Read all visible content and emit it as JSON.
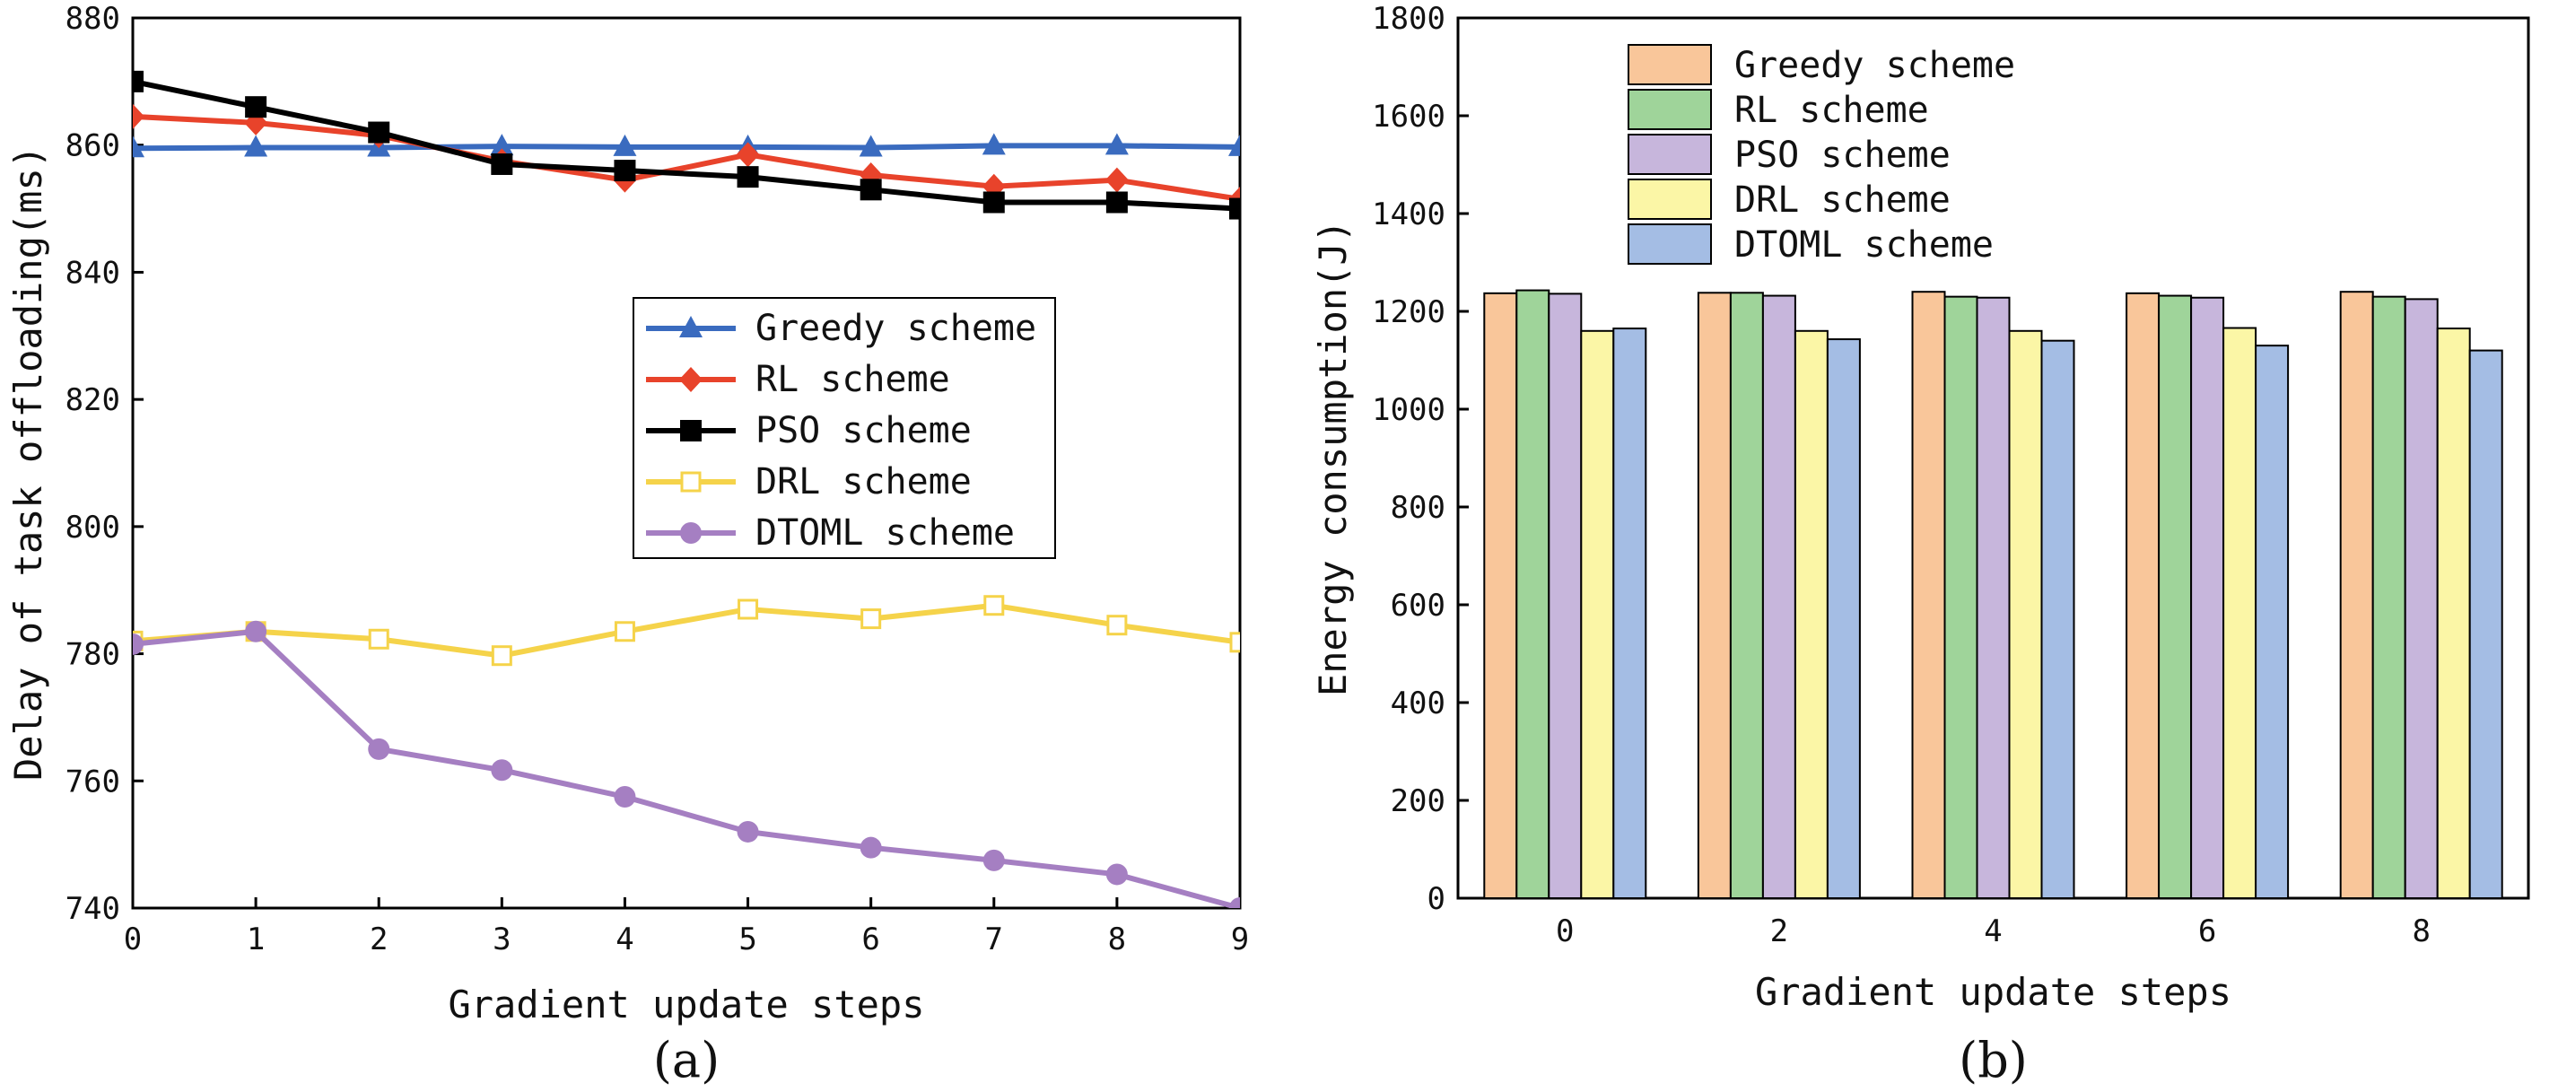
{
  "chart_data": [
    {
      "type": "line",
      "panel_label": "(a)",
      "xlabel": "Gradient update steps",
      "ylabel": "Delay of task offloading(ms)",
      "xlim": [
        0,
        9
      ],
      "ylim": [
        740,
        880
      ],
      "xticks": [
        0,
        1,
        2,
        3,
        4,
        5,
        6,
        7,
        8,
        9
      ],
      "yticks": [
        740,
        760,
        780,
        800,
        820,
        840,
        860,
        880
      ],
      "x": [
        0,
        1,
        2,
        3,
        4,
        5,
        6,
        7,
        8,
        9
      ],
      "legend_position": "center-right",
      "series": [
        {
          "name": "Greedy scheme",
          "color": "#3a6bbf",
          "marker": "triangle",
          "values": [
            859.5,
            859.6,
            859.6,
            859.8,
            859.7,
            859.7,
            859.6,
            859.9,
            859.9,
            859.7
          ]
        },
        {
          "name": "RL scheme",
          "color": "#e8432b",
          "marker": "diamond",
          "values": [
            864.5,
            863.5,
            861.5,
            857.5,
            854.5,
            858.5,
            855.3,
            853.5,
            854.5,
            851.5
          ]
        },
        {
          "name": "PSO scheme",
          "color": "#000000",
          "marker": "square",
          "values": [
            870,
            866,
            862,
            857,
            856,
            855,
            853,
            851,
            851,
            850
          ]
        },
        {
          "name": "DRL scheme",
          "color": "#f5d34a",
          "marker": "open-square",
          "values": [
            782,
            783.5,
            782.3,
            779.7,
            783.5,
            787,
            785.5,
            787.6,
            784.5,
            781.8
          ]
        },
        {
          "name": "DTOML scheme",
          "color": "#a57fc2",
          "marker": "circle",
          "values": [
            781.5,
            783.5,
            765,
            761.7,
            757.5,
            752,
            749.5,
            747.5,
            745.3,
            740
          ]
        }
      ]
    },
    {
      "type": "bar",
      "panel_label": "(b)",
      "xlabel": "Gradient update steps",
      "ylabel": "Energy consumption(J)",
      "ylim": [
        0,
        1800
      ],
      "yticks": [
        0,
        200,
        400,
        600,
        800,
        1000,
        1200,
        1400,
        1600,
        1800
      ],
      "categories": [
        "0",
        "2",
        "4",
        "6",
        "8"
      ],
      "legend_position": "top-left",
      "series": [
        {
          "name": "Greedy scheme",
          "color": "#f9c69a",
          "values": [
            1237,
            1238,
            1240,
            1237,
            1240
          ]
        },
        {
          "name": "RL scheme",
          "color": "#9fd49a",
          "values": [
            1243,
            1238,
            1230,
            1232,
            1230
          ]
        },
        {
          "name": "PSO scheme",
          "color": "#c7b6dc",
          "values": [
            1236,
            1232,
            1228,
            1228,
            1225
          ]
        },
        {
          "name": "DRL scheme",
          "color": "#fbf6a6",
          "values": [
            1160,
            1160,
            1160,
            1166,
            1165
          ]
        },
        {
          "name": "DTOML scheme",
          "color": "#a4bde4",
          "values": [
            1165,
            1143,
            1140,
            1130,
            1120
          ]
        }
      ]
    }
  ]
}
